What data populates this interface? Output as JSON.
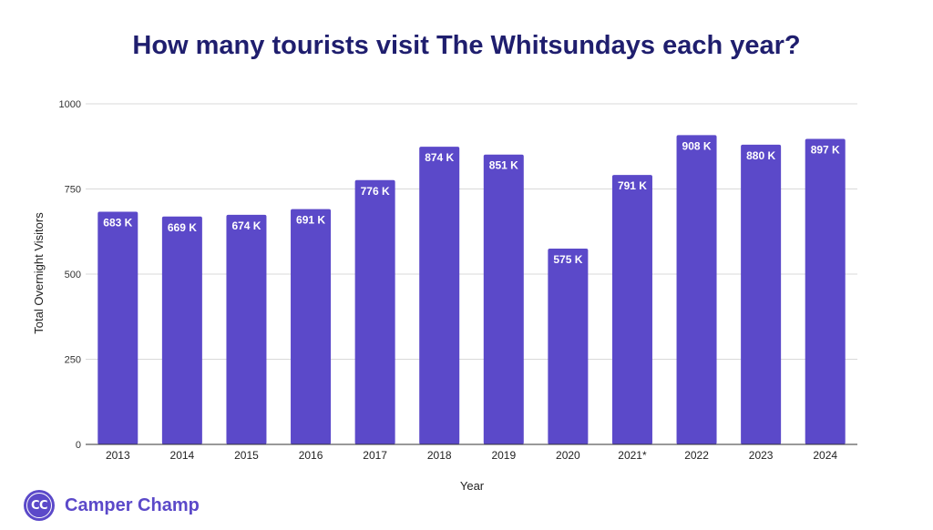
{
  "chart_data": {
    "type": "bar",
    "title": "How many tourists visit The Whitsundays each year?",
    "xlabel": "Year",
    "ylabel": "Total Overnight Visitors",
    "categories": [
      "2013",
      "2014",
      "2015",
      "2016",
      "2017",
      "2018",
      "2019",
      "2020",
      "2021*",
      "2022",
      "2023",
      "2024"
    ],
    "values": [
      683,
      669,
      674,
      691,
      776,
      874,
      851,
      575,
      791,
      908,
      880,
      897
    ],
    "data_labels": [
      "683 K",
      "669 K",
      "674 K",
      "691 K",
      "776 K",
      "874 K",
      "851 K",
      "575 K",
      "791 K",
      "908 K",
      "880 K",
      "897 K"
    ],
    "ylim": [
      0,
      1000
    ],
    "yticks": [
      0,
      250,
      500,
      750,
      1000
    ],
    "grid": true,
    "legend": "none",
    "bar_color": "#5b49c9",
    "title_color": "#1f1e6e"
  },
  "brand": {
    "logo_initials": "CC",
    "name": "Camper Champ",
    "color": "#5b49c9"
  }
}
